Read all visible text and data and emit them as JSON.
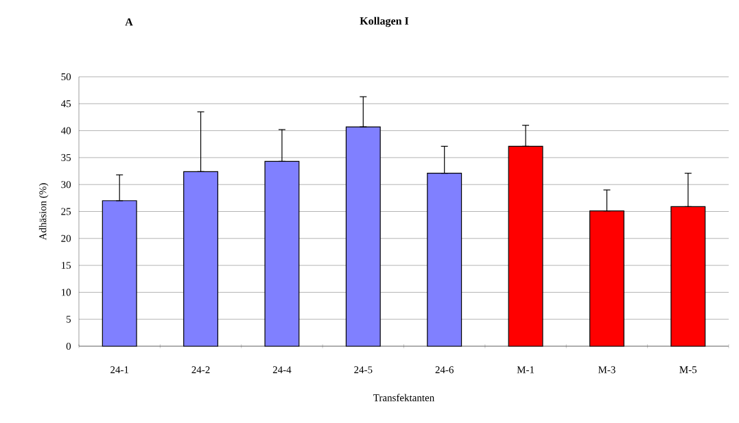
{
  "chart_data": {
    "type": "bar",
    "title": "Kollagen I",
    "annotations": [
      "A"
    ],
    "xlabel": "Transfektanten",
    "ylabel": "Adhäsion (%)",
    "categories": [
      "24-1",
      "24-2",
      "24-4",
      "24-5",
      "24-6",
      "M-1",
      "M-3",
      "M-5"
    ],
    "values": [
      27.0,
      32.4,
      34.3,
      40.7,
      32.1,
      37.1,
      25.1,
      25.9
    ],
    "errors": [
      [
        27.0,
        31.8
      ],
      [
        32.4,
        43.5
      ],
      [
        34.3,
        40.2
      ],
      [
        40.7,
        46.3
      ],
      [
        32.1,
        37.1
      ],
      [
        37.1,
        41.0
      ],
      [
        25.1,
        29.0
      ],
      [
        25.9,
        32.1
      ]
    ],
    "colors": [
      "#8080ff",
      "#8080ff",
      "#8080ff",
      "#8080ff",
      "#8080ff",
      "#ff0000",
      "#ff0000",
      "#ff0000"
    ],
    "ylim": [
      0,
      50
    ],
    "yticks": [
      0,
      5,
      10,
      15,
      20,
      25,
      30,
      35,
      40,
      45,
      50
    ],
    "grid": "y"
  }
}
